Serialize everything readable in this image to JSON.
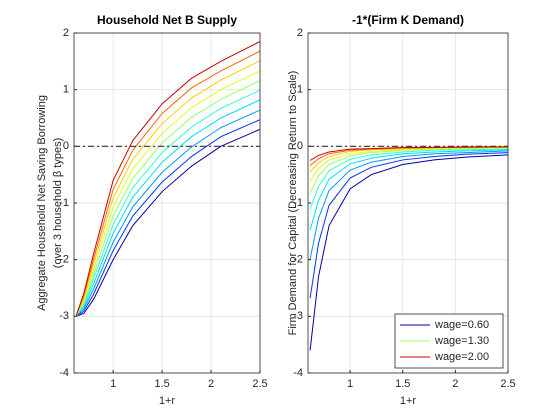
{
  "chart_data": [
    {
      "type": "line",
      "title": "Household Net B Supply",
      "xlabel": "1+r",
      "ylabel": [
        "Aggregate Household Net Saving Borrowing",
        "(over 3 household β types)"
      ],
      "x": [
        0.62,
        0.7,
        0.8,
        1.0,
        1.2,
        1.5,
        1.8,
        2.1,
        2.5
      ],
      "xlim": [
        0.6,
        2.5
      ],
      "xticks": [
        1,
        1.5,
        2,
        2.5
      ],
      "ylim": [
        -4,
        2
      ],
      "yticks": [
        -4,
        -3,
        -2,
        -1,
        0,
        1,
        2
      ],
      "grid": true,
      "reference_line": 0,
      "series": [
        {
          "color": "#0000aa",
          "values": [
            -3.0,
            -2.95,
            -2.7,
            -2.0,
            -1.4,
            -0.8,
            -0.35,
            0.0,
            0.3
          ]
        },
        {
          "color": "#0033ff",
          "values": [
            -3.0,
            -2.91,
            -2.61,
            -1.84,
            -1.23,
            -0.63,
            -0.18,
            0.17,
            0.47
          ]
        },
        {
          "color": "#0099ff",
          "values": [
            -3.0,
            -2.87,
            -2.52,
            -1.69,
            -1.07,
            -0.46,
            -0.01,
            0.33,
            0.64
          ]
        },
        {
          "color": "#00ddff",
          "values": [
            -3.0,
            -2.83,
            -2.43,
            -1.53,
            -0.9,
            -0.28,
            0.17,
            0.5,
            0.82
          ]
        },
        {
          "color": "#33ffcc",
          "values": [
            -3.0,
            -2.79,
            -2.34,
            -1.38,
            -0.73,
            -0.11,
            0.34,
            0.67,
            0.99
          ]
        },
        {
          "color": "#99ff66",
          "values": [
            -3.0,
            -2.76,
            -2.26,
            -1.22,
            -0.57,
            0.06,
            0.51,
            0.83,
            1.16
          ]
        },
        {
          "color": "#ddff22",
          "values": [
            -3.0,
            -2.72,
            -2.17,
            -1.07,
            -0.4,
            0.23,
            0.68,
            1.0,
            1.33
          ]
        },
        {
          "color": "#ffcc00",
          "values": [
            -3.0,
            -2.68,
            -2.08,
            -0.91,
            -0.23,
            0.4,
            0.85,
            1.17,
            1.51
          ]
        },
        {
          "color": "#ff6600",
          "values": [
            -3.0,
            -2.64,
            -1.99,
            -0.76,
            -0.07,
            0.58,
            1.03,
            1.33,
            1.68
          ]
        },
        {
          "color": "#cc0000",
          "values": [
            -3.0,
            -2.6,
            -1.9,
            -0.6,
            0.1,
            0.75,
            1.2,
            1.5,
            1.85
          ]
        }
      ]
    },
    {
      "type": "line",
      "title": "-1*(Firm K Demand)",
      "xlabel": "1+r",
      "ylabel": [
        "Firm Demand for Capital (Decreasing Return to Scale)"
      ],
      "x": [
        0.62,
        0.7,
        0.8,
        1.0,
        1.2,
        1.5,
        1.8,
        2.1,
        2.5
      ],
      "xlim": [
        0.6,
        2.5
      ],
      "xticks": [
        1,
        1.5,
        2,
        2.5
      ],
      "ylim": [
        -4,
        2
      ],
      "yticks": [
        -4,
        -3,
        -2,
        -1,
        0,
        1,
        2
      ],
      "grid": true,
      "reference_line": 0,
      "legend": "lower right",
      "series": [
        {
          "name": "wage=0.60",
          "color": "#0000aa",
          "values": [
            -3.6,
            -2.3,
            -1.4,
            -0.75,
            -0.5,
            -0.32,
            -0.24,
            -0.19,
            -0.15
          ]
        },
        {
          "color": "#0033ff",
          "values": [
            -2.68,
            -1.71,
            -1.04,
            -0.56,
            -0.37,
            -0.24,
            -0.18,
            -0.14,
            -0.11
          ]
        },
        {
          "color": "#0099ff",
          "values": [
            -1.99,
            -1.27,
            -0.78,
            -0.42,
            -0.28,
            -0.18,
            -0.13,
            -0.11,
            -0.08
          ]
        },
        {
          "color": "#00ddff",
          "values": [
            -1.48,
            -0.95,
            -0.58,
            -0.31,
            -0.21,
            -0.13,
            -0.1,
            -0.08,
            -0.06
          ]
        },
        {
          "color": "#33ffcc",
          "values": [
            -1.11,
            -0.71,
            -0.43,
            -0.23,
            -0.15,
            -0.1,
            -0.07,
            -0.06,
            -0.05
          ]
        },
        {
          "name": "wage=1.30",
          "color": "#99ff66",
          "values": [
            -0.82,
            -0.52,
            -0.32,
            -0.17,
            -0.11,
            -0.07,
            -0.05,
            -0.04,
            -0.03
          ]
        },
        {
          "color": "#ddff22",
          "values": [
            -0.61,
            -0.39,
            -0.24,
            -0.13,
            -0.09,
            -0.05,
            -0.04,
            -0.03,
            -0.03
          ]
        },
        {
          "color": "#ffcc00",
          "values": [
            -0.45,
            -0.29,
            -0.18,
            -0.09,
            -0.06,
            -0.04,
            -0.03,
            -0.02,
            -0.02
          ]
        },
        {
          "color": "#ff6600",
          "values": [
            -0.34,
            -0.22,
            -0.13,
            -0.07,
            -0.05,
            -0.03,
            -0.02,
            -0.02,
            -0.01
          ]
        },
        {
          "name": "wage=2.00",
          "color": "#cc0000",
          "values": [
            -0.25,
            -0.16,
            -0.1,
            -0.05,
            -0.04,
            -0.02,
            -0.02,
            -0.01,
            -0.01
          ]
        }
      ]
    }
  ]
}
